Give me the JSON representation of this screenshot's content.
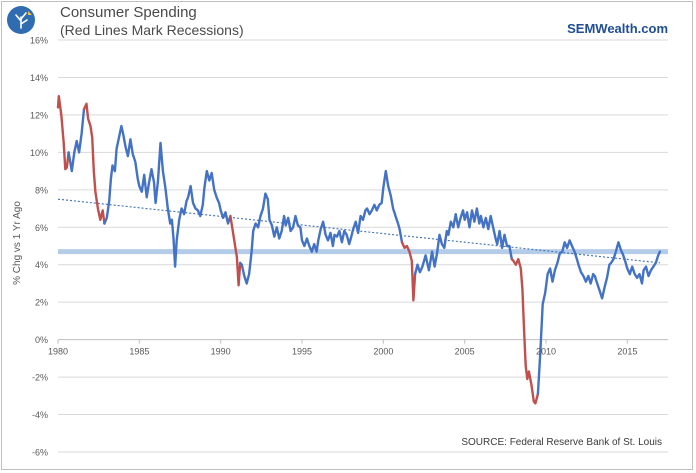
{
  "header": {
    "title": "Consumer Spending",
    "subtitle": "(Red Lines Mark Recessions)",
    "brand": "SEMWealth.com",
    "source": "SOURCE:  Federal Reserve Bank of St. Louis"
  },
  "colors": {
    "line": "#4472c4",
    "recession": "#c0504d",
    "trend": "#3b6fb6",
    "current_band": "#a7c4e4",
    "grid": "#d9d9d9",
    "axis_text": "#595959",
    "logo_bg": "#2f6db0"
  },
  "icons": {
    "logo": "semwealth-logo-icon"
  },
  "chart_data": {
    "type": "line",
    "title": "Consumer Spending",
    "subtitle": "(Red Lines Mark Recessions)",
    "xlabel": "",
    "ylabel": "% Chg vs 1 Yr Ago",
    "xlim": [
      1980,
      2017.5
    ],
    "ylim": [
      -6,
      16
    ],
    "x_ticks": [
      1980,
      1985,
      1990,
      1995,
      2000,
      2005,
      2010,
      2015
    ],
    "y_ticks": [
      -6,
      -4,
      -2,
      0,
      2,
      4,
      6,
      8,
      10,
      12,
      14,
      16
    ],
    "y_tick_labels": [
      "-6%",
      "-4%",
      "-2%",
      "0%",
      "2%",
      "4%",
      "6%",
      "8%",
      "10%",
      "12%",
      "14%",
      "16%"
    ],
    "grid": "horizontal",
    "series": [
      {
        "name": "Consumer Spending % Chg vs 1 Yr Ago",
        "points": [
          [
            1980.0,
            12.4
          ],
          [
            1980.05,
            13.0
          ],
          [
            1980.2,
            12.0
          ],
          [
            1980.35,
            10.5
          ],
          [
            1980.45,
            9.1
          ],
          [
            1980.55,
            9.2
          ],
          [
            1980.65,
            10.0
          ],
          [
            1980.75,
            9.5
          ],
          [
            1980.85,
            9.0
          ],
          [
            1981.0,
            10.0
          ],
          [
            1981.15,
            10.6
          ],
          [
            1981.3,
            10.0
          ],
          [
            1981.45,
            11.0
          ],
          [
            1981.6,
            12.3
          ],
          [
            1981.75,
            12.6
          ],
          [
            1981.85,
            11.8
          ],
          [
            1982.0,
            11.4
          ],
          [
            1982.1,
            10.8
          ],
          [
            1982.2,
            9.0
          ],
          [
            1982.3,
            7.9
          ],
          [
            1982.45,
            7.0
          ],
          [
            1982.6,
            6.4
          ],
          [
            1982.75,
            6.9
          ],
          [
            1982.85,
            6.2
          ],
          [
            1983.0,
            6.5
          ],
          [
            1983.15,
            7.4
          ],
          [
            1983.25,
            8.6
          ],
          [
            1983.35,
            9.3
          ],
          [
            1983.5,
            9.0
          ],
          [
            1983.6,
            10.2
          ],
          [
            1983.75,
            10.8
          ],
          [
            1983.9,
            11.4
          ],
          [
            1984.0,
            11.0
          ],
          [
            1984.15,
            10.3
          ],
          [
            1984.3,
            9.8
          ],
          [
            1984.45,
            10.7
          ],
          [
            1984.6,
            9.9
          ],
          [
            1984.75,
            9.5
          ],
          [
            1984.9,
            8.6
          ],
          [
            1985.0,
            8.2
          ],
          [
            1985.15,
            7.9
          ],
          [
            1985.3,
            8.8
          ],
          [
            1985.45,
            7.6
          ],
          [
            1985.6,
            8.4
          ],
          [
            1985.75,
            9.1
          ],
          [
            1985.9,
            8.4
          ],
          [
            1986.0,
            7.3
          ],
          [
            1986.15,
            8.5
          ],
          [
            1986.3,
            10.5
          ],
          [
            1986.45,
            9.0
          ],
          [
            1986.6,
            8.1
          ],
          [
            1986.75,
            7.0
          ],
          [
            1986.9,
            6.2
          ],
          [
            1987.0,
            6.4
          ],
          [
            1987.1,
            5.4
          ],
          [
            1987.2,
            3.9
          ],
          [
            1987.3,
            5.3
          ],
          [
            1987.45,
            6.4
          ],
          [
            1987.6,
            7.0
          ],
          [
            1987.75,
            6.7
          ],
          [
            1987.9,
            7.4
          ],
          [
            1988.0,
            7.6
          ],
          [
            1988.15,
            8.2
          ],
          [
            1988.3,
            7.3
          ],
          [
            1988.45,
            7.0
          ],
          [
            1988.6,
            6.9
          ],
          [
            1988.75,
            6.6
          ],
          [
            1988.9,
            7.2
          ],
          [
            1989.0,
            8.1
          ],
          [
            1989.15,
            9.0
          ],
          [
            1989.3,
            8.5
          ],
          [
            1989.45,
            8.9
          ],
          [
            1989.6,
            8.0
          ],
          [
            1989.75,
            7.6
          ],
          [
            1989.9,
            7.3
          ],
          [
            1990.0,
            6.9
          ],
          [
            1990.15,
            6.5
          ],
          [
            1990.3,
            6.8
          ],
          [
            1990.45,
            6.2
          ],
          [
            1990.6,
            6.6
          ],
          [
            1991.0,
            4.4
          ],
          [
            1991.1,
            2.9
          ],
          [
            1991.2,
            4.1
          ],
          [
            1991.3,
            4.0
          ],
          [
            1991.45,
            3.4
          ],
          [
            1991.6,
            3.0
          ],
          [
            1991.75,
            3.5
          ],
          [
            1991.9,
            4.7
          ],
          [
            1992.0,
            5.8
          ],
          [
            1992.15,
            6.2
          ],
          [
            1992.3,
            6.0
          ],
          [
            1992.45,
            6.6
          ],
          [
            1992.6,
            7.0
          ],
          [
            1992.75,
            7.8
          ],
          [
            1992.9,
            7.5
          ],
          [
            1993.0,
            6.4
          ],
          [
            1993.15,
            6.1
          ],
          [
            1993.3,
            5.5
          ],
          [
            1993.45,
            6.0
          ],
          [
            1993.6,
            5.4
          ],
          [
            1993.75,
            5.8
          ],
          [
            1993.9,
            6.6
          ],
          [
            1994.0,
            6.1
          ],
          [
            1994.15,
            6.5
          ],
          [
            1994.3,
            5.8
          ],
          [
            1994.45,
            6.0
          ],
          [
            1994.6,
            6.6
          ],
          [
            1994.75,
            6.1
          ],
          [
            1994.9,
            6.0
          ],
          [
            1995.0,
            5.3
          ],
          [
            1995.15,
            5.0
          ],
          [
            1995.3,
            5.4
          ],
          [
            1995.45,
            5.0
          ],
          [
            1995.6,
            4.7
          ],
          [
            1995.75,
            5.1
          ],
          [
            1995.9,
            4.7
          ],
          [
            1996.0,
            5.3
          ],
          [
            1996.15,
            5.9
          ],
          [
            1996.3,
            6.3
          ],
          [
            1996.45,
            5.6
          ],
          [
            1996.6,
            5.3
          ],
          [
            1996.75,
            5.7
          ],
          [
            1996.9,
            5.0
          ],
          [
            1997.0,
            5.6
          ],
          [
            1997.15,
            5.5
          ],
          [
            1997.3,
            5.8
          ],
          [
            1997.45,
            5.2
          ],
          [
            1997.6,
            5.8
          ],
          [
            1997.75,
            5.6
          ],
          [
            1997.9,
            5.1
          ],
          [
            1998.0,
            5.4
          ],
          [
            1998.15,
            5.9
          ],
          [
            1998.3,
            6.3
          ],
          [
            1998.45,
            5.7
          ],
          [
            1998.6,
            6.6
          ],
          [
            1998.75,
            6.4
          ],
          [
            1998.9,
            6.9
          ],
          [
            1999.0,
            7.0
          ],
          [
            1999.15,
            6.7
          ],
          [
            1999.3,
            6.9
          ],
          [
            1999.45,
            7.2
          ],
          [
            1999.6,
            6.9
          ],
          [
            1999.75,
            7.2
          ],
          [
            1999.9,
            7.3
          ],
          [
            2000.0,
            8.1
          ],
          [
            2000.15,
            9.0
          ],
          [
            2000.3,
            8.2
          ],
          [
            2000.45,
            7.7
          ],
          [
            2000.6,
            7.0
          ],
          [
            2000.75,
            6.6
          ],
          [
            2000.9,
            6.2
          ],
          [
            2001.0,
            5.9
          ],
          [
            2001.15,
            5.2
          ],
          [
            2001.3,
            4.9
          ],
          [
            2001.45,
            5.0
          ],
          [
            2001.6,
            4.7
          ],
          [
            2001.75,
            4.2
          ],
          [
            2001.85,
            2.1
          ],
          [
            2001.95,
            3.5
          ],
          [
            2002.1,
            4.0
          ],
          [
            2002.25,
            3.6
          ],
          [
            2002.4,
            3.9
          ],
          [
            2002.6,
            4.5
          ],
          [
            2002.8,
            3.7
          ],
          [
            2003.0,
            4.7
          ],
          [
            2003.15,
            3.9
          ],
          [
            2003.3,
            4.6
          ],
          [
            2003.45,
            5.6
          ],
          [
            2003.6,
            5.1
          ],
          [
            2003.75,
            4.9
          ],
          [
            2003.9,
            5.8
          ],
          [
            2004.0,
            5.6
          ],
          [
            2004.15,
            6.3
          ],
          [
            2004.3,
            6.0
          ],
          [
            2004.45,
            6.7
          ],
          [
            2004.6,
            6.0
          ],
          [
            2004.75,
            6.5
          ],
          [
            2004.9,
            6.9
          ],
          [
            2005.0,
            6.4
          ],
          [
            2005.15,
            6.8
          ],
          [
            2005.3,
            6.0
          ],
          [
            2005.45,
            6.9
          ],
          [
            2005.6,
            6.3
          ],
          [
            2005.75,
            7.0
          ],
          [
            2005.9,
            6.2
          ],
          [
            2006.0,
            6.6
          ],
          [
            2006.15,
            6.0
          ],
          [
            2006.3,
            6.5
          ],
          [
            2006.45,
            5.9
          ],
          [
            2006.6,
            6.6
          ],
          [
            2006.75,
            6.0
          ],
          [
            2006.9,
            5.4
          ],
          [
            2007.0,
            5.1
          ],
          [
            2007.15,
            5.8
          ],
          [
            2007.3,
            4.9
          ],
          [
            2007.45,
            5.6
          ],
          [
            2007.6,
            5.0
          ],
          [
            2007.75,
            5.0
          ],
          [
            2007.9,
            4.3
          ],
          [
            2008.0,
            4.2
          ],
          [
            2008.15,
            4.0
          ],
          [
            2008.3,
            4.3
          ],
          [
            2008.45,
            3.8
          ],
          [
            2008.55,
            2.7
          ],
          [
            2008.65,
            0.6
          ],
          [
            2008.75,
            -1.4
          ],
          [
            2008.85,
            -2.1
          ],
          [
            2008.95,
            -1.7
          ],
          [
            2009.1,
            -2.4
          ],
          [
            2009.25,
            -3.3
          ],
          [
            2009.35,
            -3.4
          ],
          [
            2009.5,
            -2.9
          ],
          [
            2009.65,
            -0.7
          ],
          [
            2009.8,
            1.9
          ],
          [
            2009.95,
            2.5
          ],
          [
            2010.1,
            3.5
          ],
          [
            2010.25,
            3.8
          ],
          [
            2010.4,
            3.1
          ],
          [
            2010.55,
            3.7
          ],
          [
            2010.7,
            4.1
          ],
          [
            2010.85,
            4.6
          ],
          [
            2011.0,
            4.7
          ],
          [
            2011.15,
            5.2
          ],
          [
            2011.3,
            4.9
          ],
          [
            2011.45,
            5.3
          ],
          [
            2011.6,
            5.0
          ],
          [
            2011.75,
            4.7
          ],
          [
            2011.9,
            4.3
          ],
          [
            2012.0,
            4.0
          ],
          [
            2012.15,
            3.6
          ],
          [
            2012.3,
            3.4
          ],
          [
            2012.45,
            3.1
          ],
          [
            2012.6,
            3.4
          ],
          [
            2012.75,
            3.0
          ],
          [
            2012.9,
            3.5
          ],
          [
            2013.0,
            3.4
          ],
          [
            2013.15,
            3.0
          ],
          [
            2013.3,
            2.6
          ],
          [
            2013.45,
            2.2
          ],
          [
            2013.6,
            2.8
          ],
          [
            2013.75,
            3.3
          ],
          [
            2013.9,
            4.0
          ],
          [
            2014.0,
            4.1
          ],
          [
            2014.15,
            4.3
          ],
          [
            2014.3,
            4.7
          ],
          [
            2014.45,
            5.2
          ],
          [
            2014.6,
            4.8
          ],
          [
            2014.75,
            4.5
          ],
          [
            2014.9,
            4.1
          ],
          [
            2015.0,
            3.8
          ],
          [
            2015.15,
            3.5
          ],
          [
            2015.3,
            3.9
          ],
          [
            2015.45,
            3.5
          ],
          [
            2015.6,
            3.3
          ],
          [
            2015.75,
            3.5
          ],
          [
            2015.9,
            3.0
          ],
          [
            2016.0,
            3.7
          ],
          [
            2016.15,
            3.9
          ],
          [
            2016.3,
            3.4
          ],
          [
            2016.45,
            3.7
          ],
          [
            2016.6,
            3.9
          ],
          [
            2016.75,
            4.1
          ],
          [
            2016.9,
            4.5
          ],
          [
            2017.0,
            4.7
          ]
        ]
      }
    ],
    "recessions": [
      [
        1980.0,
        1980.6
      ],
      [
        1981.55,
        1982.9
      ],
      [
        1990.6,
        1991.2
      ],
      [
        2001.2,
        2001.9
      ],
      [
        2007.95,
        2009.45
      ]
    ],
    "current_level": 4.7,
    "trend_line": [
      [
        1980.0,
        7.5
      ],
      [
        2017.0,
        4.1
      ]
    ]
  }
}
